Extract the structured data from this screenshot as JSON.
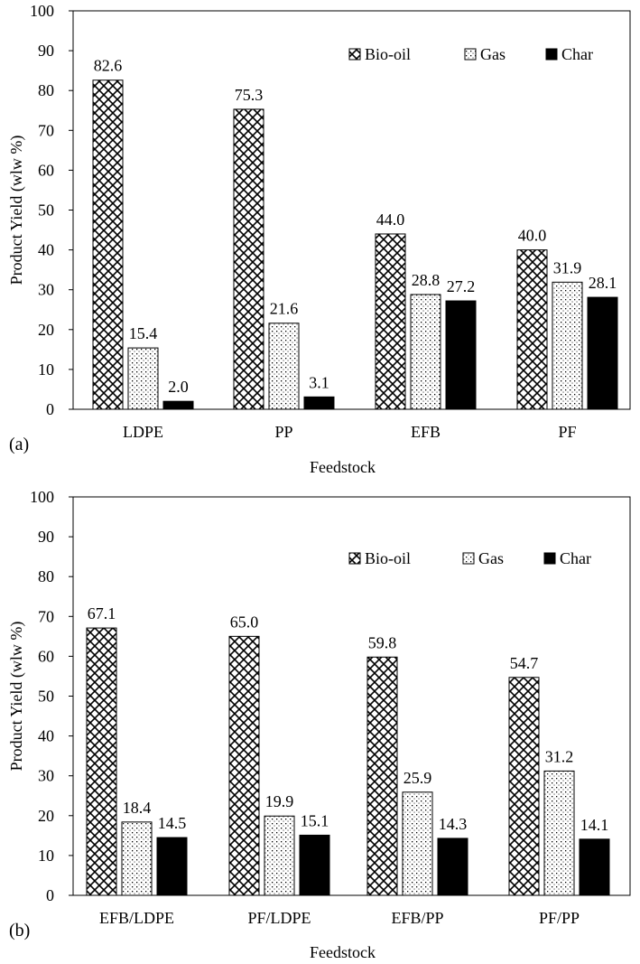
{
  "chart_data": [
    {
      "type": "bar",
      "panel_label": "(a)",
      "categories": [
        "LDPE",
        "PP",
        "EFB",
        "PF"
      ],
      "series": [
        {
          "name": "Bio-oil",
          "values": [
            82.6,
            75.3,
            44.0,
            40.0
          ],
          "pattern": "crosshatch"
        },
        {
          "name": "Gas",
          "values": [
            15.4,
            21.6,
            28.8,
            31.9
          ],
          "pattern": "dots"
        },
        {
          "name": "Char",
          "values": [
            2.0,
            3.1,
            27.2,
            28.1
          ],
          "pattern": "solid"
        }
      ],
      "data_labels": [
        [
          "82.6",
          "75.3",
          "44.0",
          "40.0"
        ],
        [
          "15.4",
          "21.6",
          "28.8",
          "31.9"
        ],
        [
          "2.0",
          "3.1",
          "27.2",
          "28.1"
        ]
      ],
      "xlabel": "Feedstock",
      "ylabel": "Product Yield (wlw %)",
      "ylim": [
        0,
        100
      ],
      "yticks": [
        "0",
        "10",
        "20",
        "30",
        "40",
        "50",
        "60",
        "70",
        "80",
        "90",
        "100"
      ],
      "grid": false,
      "legend": "top-right"
    },
    {
      "type": "bar",
      "panel_label": "(b)",
      "categories": [
        "EFB/LDPE",
        "PF/LDPE",
        "EFB/PP",
        "PF/PP"
      ],
      "series": [
        {
          "name": "Bio-oil",
          "values": [
            67.1,
            65.0,
            59.8,
            54.7
          ],
          "pattern": "crosshatch"
        },
        {
          "name": "Gas",
          "values": [
            18.4,
            19.9,
            25.9,
            31.2
          ],
          "pattern": "dots"
        },
        {
          "name": "Char",
          "values": [
            14.5,
            15.1,
            14.3,
            14.1
          ],
          "pattern": "solid"
        }
      ],
      "data_labels": [
        [
          "67.1",
          "65.0",
          "59.8",
          "54.7"
        ],
        [
          "18.4",
          "19.9",
          "25.9",
          "31.2"
        ],
        [
          "14.5",
          "15.1",
          "14.3",
          "14.1"
        ]
      ],
      "xlabel": "Feedstock",
      "ylabel": "Product Yield (wlw %)",
      "ylim": [
        0,
        100
      ],
      "yticks": [
        "0",
        "10",
        "20",
        "30",
        "40",
        "50",
        "60",
        "70",
        "80",
        "90",
        "100"
      ],
      "grid": false,
      "legend": "top-right"
    }
  ]
}
